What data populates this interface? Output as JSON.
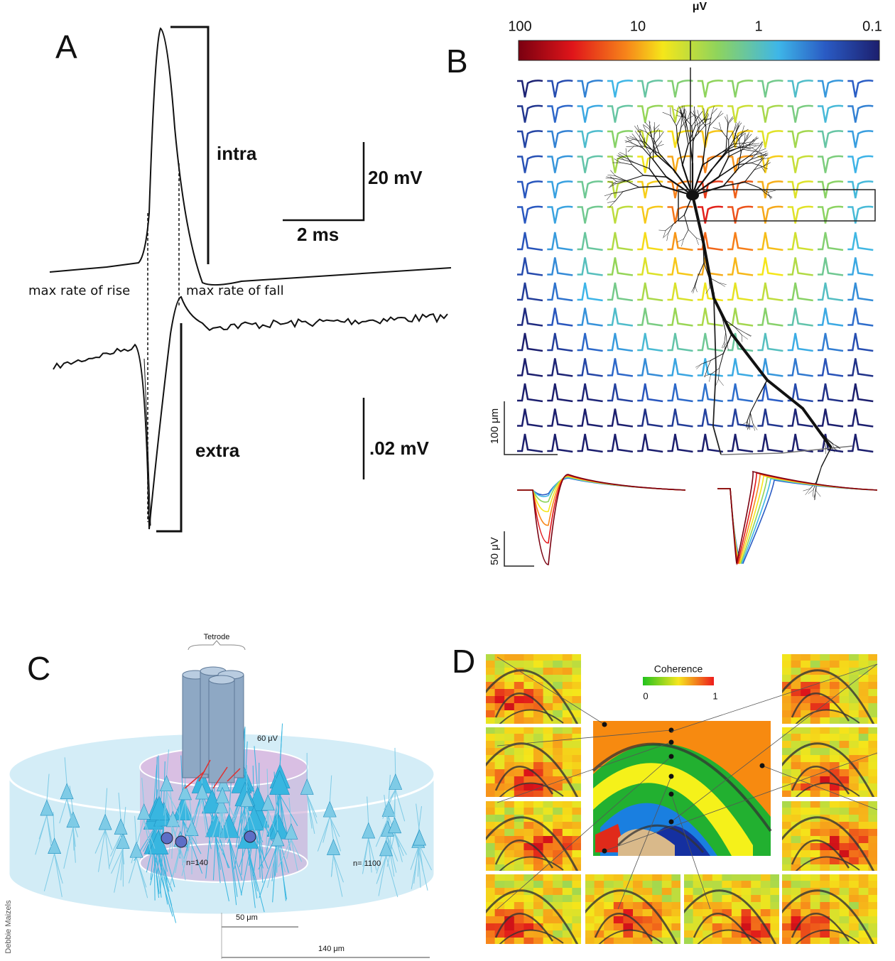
{
  "panels": {
    "A": {
      "label": "A",
      "intra": "intra",
      "extra": "extra",
      "scale_voltage_intra": "20 mV",
      "scale_time": "2 ms",
      "scale_voltage_extra": ".02 mV",
      "max_rise": "max rate of rise",
      "max_fall": "max rate of fall"
    },
    "B": {
      "label": "B",
      "colorbar_unit": "μV",
      "colorbar_ticks": [
        "100",
        "10",
        "1",
        "0.1"
      ],
      "scale_distance": "100 μm",
      "scale_voltage": "50 μV"
    },
    "C": {
      "label": "C",
      "tetrode": "Tetrode",
      "amplitude": "60 μV",
      "inner_count": "n=140",
      "outer_count": "n= 1100",
      "inner_radius": "50 μm",
      "outer_radius": "140 μm",
      "credit": "Debbie Maizels"
    },
    "D": {
      "label": "D",
      "colorbar_title": "Coherence",
      "colorbar_min": "0",
      "colorbar_max": "1"
    }
  }
}
